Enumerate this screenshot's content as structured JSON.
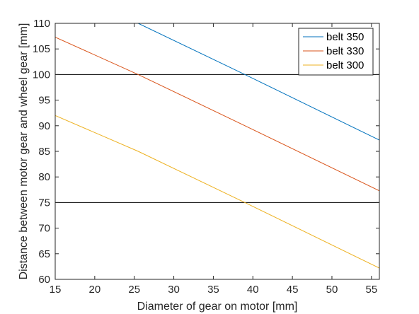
{
  "chart_data": {
    "type": "line",
    "xlabel": "Diameter of gear on motor [mm]",
    "ylabel": "Distance between motor gear and wheel gear [mm]",
    "xlim": [
      15,
      56
    ],
    "ylim": [
      60,
      110
    ],
    "xticks": [
      15,
      20,
      25,
      30,
      35,
      40,
      45,
      50,
      55
    ],
    "yticks": [
      60,
      65,
      70,
      75,
      80,
      85,
      90,
      95,
      100,
      105,
      110
    ],
    "legend_position": "top-right",
    "grid": false,
    "series": [
      {
        "name": "belt 350",
        "color": "#0072BD",
        "x": [
          15,
          25.5,
          39,
          56
        ],
        "y": [
          117.0,
          110.0,
          100.0,
          87.2
        ]
      },
      {
        "name": "belt 330",
        "color": "#D95319",
        "x": [
          15,
          25.5,
          39,
          56
        ],
        "y": [
          107.3,
          100.0,
          90.0,
          77.3
        ]
      },
      {
        "name": "belt 300",
        "color": "#EDB120",
        "x": [
          15,
          25.5,
          39,
          56
        ],
        "y": [
          92.0,
          85.0,
          75.0,
          62.2
        ]
      }
    ],
    "reference_lines": [
      {
        "y": 100,
        "color": "#000000"
      },
      {
        "y": 75,
        "color": "#000000"
      }
    ]
  }
}
